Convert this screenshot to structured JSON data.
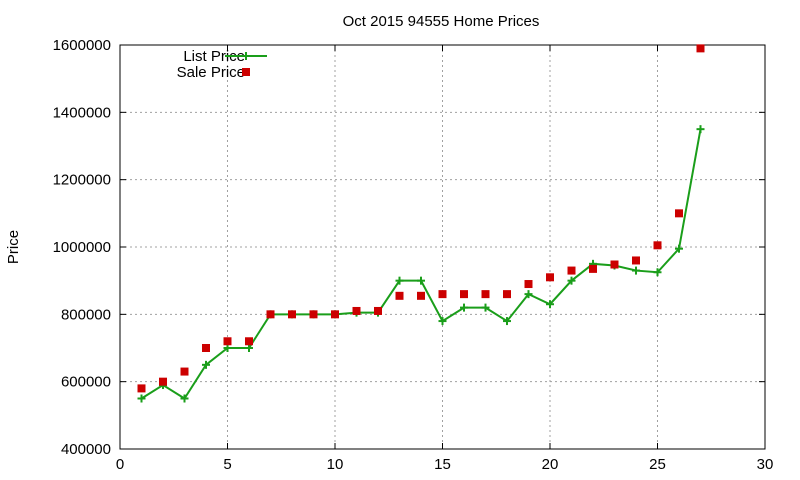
{
  "chart_data": {
    "type": "line",
    "title": "Oct 2015 94555 Home Prices",
    "xlabel": "",
    "ylabel": "Price",
    "xlim": [
      0,
      30
    ],
    "ylim": [
      400000,
      1600000
    ],
    "xticks": [
      0,
      5,
      10,
      15,
      20,
      25,
      30
    ],
    "yticks": [
      400000,
      600000,
      800000,
      1000000,
      1200000,
      1400000,
      1600000
    ],
    "grid": true,
    "legend_position": "top-left",
    "series": [
      {
        "name": "List Price",
        "style": "line-plus",
        "color": "#1a9e1a",
        "x": [
          1,
          2,
          3,
          4,
          5,
          6,
          7,
          8,
          9,
          10,
          11,
          12,
          13,
          14,
          15,
          16,
          17,
          18,
          19,
          20,
          21,
          22,
          23,
          24,
          25,
          26,
          27
        ],
        "values": [
          550000,
          590000,
          550000,
          650000,
          700000,
          700000,
          800000,
          800000,
          800000,
          800000,
          805000,
          805000,
          900000,
          900000,
          780000,
          820000,
          820000,
          780000,
          860000,
          830000,
          900000,
          950000,
          945000,
          930000,
          925000,
          995000,
          1350000
        ]
      },
      {
        "name": "Sale Price",
        "style": "square-points",
        "color": "#cc0000",
        "x": [
          1,
          2,
          3,
          4,
          5,
          6,
          7,
          8,
          9,
          10,
          11,
          12,
          13,
          14,
          15,
          16,
          17,
          18,
          19,
          20,
          21,
          22,
          23,
          24,
          25,
          26,
          27
        ],
        "values": [
          580000,
          600000,
          630000,
          700000,
          720000,
          720000,
          800000,
          800000,
          800000,
          800000,
          810000,
          810000,
          855000,
          855000,
          860000,
          860000,
          860000,
          860000,
          890000,
          910000,
          930000,
          935000,
          948000,
          960000,
          1005000,
          1100000,
          1590000
        ]
      }
    ]
  }
}
